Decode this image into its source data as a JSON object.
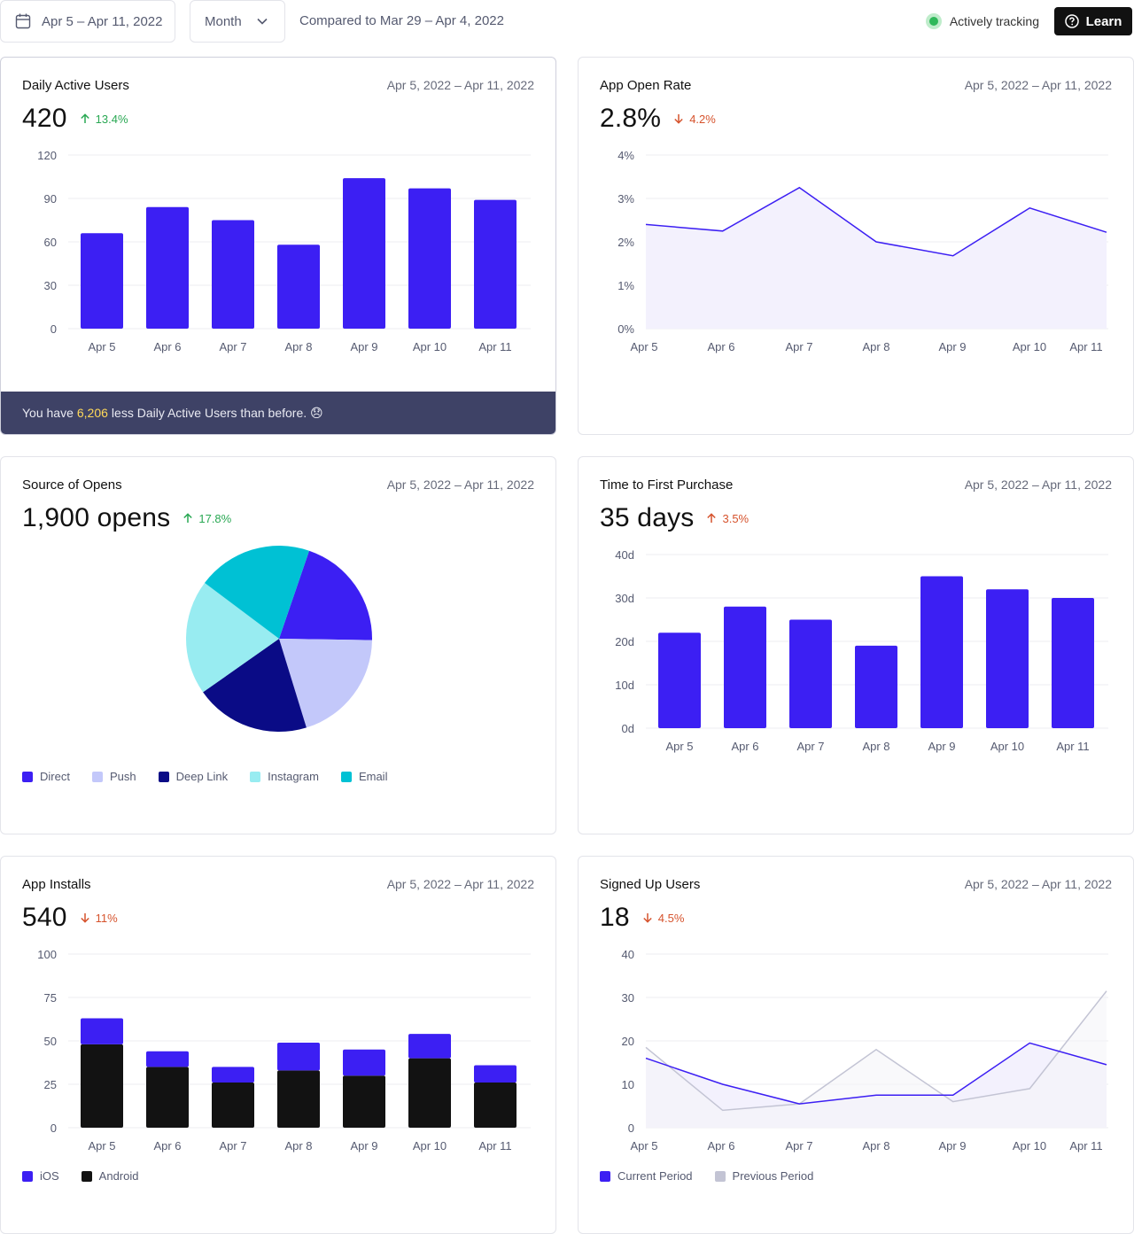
{
  "topbar": {
    "date_range": "Apr 5 – Apr 11, 2022",
    "period": "Month",
    "compared": "Compared to Mar 29 – Apr 4, 2022",
    "tracking": "Actively tracking",
    "learn": "Learn"
  },
  "cards": {
    "dau": {
      "title": "Daily Active Users",
      "date": "Apr 5, 2022 – Apr 11, 2022",
      "value": "420",
      "delta": "13.4%",
      "footer_prefix": "You have",
      "footer_highlight": "6,206",
      "footer_suffix": "less Daily Active Users than before. 😞"
    },
    "open_rate": {
      "title": "App Open Rate",
      "date": "Apr 5, 2022 – Apr 11, 2022",
      "value": "2.8%",
      "delta": "4.2%"
    },
    "sources": {
      "title": "Source of Opens",
      "date": "Apr 5, 2022 – Apr 11, 2022",
      "value": "1,900 opens",
      "delta": "17.8%"
    },
    "purchase": {
      "title": "Time to First Purchase",
      "date": "Apr 5, 2022 – Apr 11, 2022",
      "value": "35 days",
      "delta": "3.5%"
    },
    "installs": {
      "title": "App Installs",
      "date": "Apr 5, 2022 – Apr 11, 2022",
      "value": "540",
      "delta": "11%"
    },
    "signups": {
      "title": "Signed Up Users",
      "date": "Apr 5, 2022 – Apr 11, 2022",
      "value": "18",
      "delta": "4.5%"
    }
  },
  "colors": {
    "primary": "#3c1ff3",
    "dark": "#121212",
    "up": "#29a853",
    "down": "#d6532d",
    "grid": "#ececf2",
    "area": "#f3f1fd",
    "prev_line": "#c3c4d4"
  },
  "chart_data": [
    {
      "id": "dau",
      "type": "bar",
      "title": "Daily Active Users",
      "categories": [
        "Apr 5",
        "Apr 6",
        "Apr 7",
        "Apr 8",
        "Apr 9",
        "Apr 10",
        "Apr 11"
      ],
      "values": [
        66,
        84,
        75,
        58,
        104,
        97,
        89
      ],
      "yticks": [
        "0",
        "30",
        "60",
        "90",
        "120"
      ],
      "ylim": [
        0,
        120
      ]
    },
    {
      "id": "open_rate",
      "type": "area",
      "title": "App Open Rate",
      "categories": [
        "Apr 5",
        "Apr 6",
        "Apr 7",
        "Apr 8",
        "Apr 9",
        "Apr 10",
        "Apr 11"
      ],
      "values": [
        2.4,
        2.25,
        3.25,
        2.0,
        1.68,
        2.78,
        2.22
      ],
      "yticks": [
        "0%",
        "1%",
        "2%",
        "3%",
        "4%"
      ],
      "ylim": [
        0,
        4
      ]
    },
    {
      "id": "sources",
      "type": "pie",
      "title": "Source of Opens",
      "labels": [
        "Direct",
        "Push",
        "Deep Link",
        "Instagram",
        "Email"
      ],
      "values": [
        20,
        20,
        20,
        20,
        20
      ],
      "colors": [
        "#3c1ff3",
        "#c3c8fa",
        "#0a0b86",
        "#98ecf1",
        "#00c1d4"
      ]
    },
    {
      "id": "purchase",
      "type": "bar",
      "title": "Time to First Purchase",
      "categories": [
        "Apr 5",
        "Apr 6",
        "Apr 7",
        "Apr 8",
        "Apr 9",
        "Apr 10",
        "Apr 11"
      ],
      "values": [
        22,
        28,
        25,
        19,
        35,
        32,
        30
      ],
      "yticks": [
        "0d",
        "10d",
        "20d",
        "30d",
        "40d"
      ],
      "ylim": [
        0,
        40
      ]
    },
    {
      "id": "installs",
      "type": "bar",
      "stacked": true,
      "title": "App Installs",
      "categories": [
        "Apr 5",
        "Apr 6",
        "Apr 7",
        "Apr 8",
        "Apr 9",
        "Apr 10",
        "Apr 11"
      ],
      "series": [
        {
          "name": "Android",
          "values": [
            48,
            35,
            26,
            33,
            30,
            40,
            26
          ],
          "color": "#121212"
        },
        {
          "name": "iOS",
          "values": [
            15,
            9,
            9,
            16,
            15,
            14,
            10
          ],
          "color": "#3c1ff3"
        }
      ],
      "yticks": [
        "0",
        "25",
        "50",
        "75",
        "100"
      ],
      "ylim": [
        0,
        100
      ],
      "legend": [
        "iOS",
        "Android"
      ]
    },
    {
      "id": "signups",
      "type": "line",
      "title": "Signed Up Users",
      "categories": [
        "Apr 5",
        "Apr 6",
        "Apr 7",
        "Apr 8",
        "Apr 9",
        "Apr 10",
        "Apr 11"
      ],
      "series": [
        {
          "name": "Current Period",
          "values": [
            16,
            10,
            5.5,
            7.5,
            7.5,
            19.5,
            14.5
          ],
          "color": "#3c1ff3"
        },
        {
          "name": "Previous Period",
          "values": [
            18.5,
            4,
            5.5,
            18,
            6,
            9,
            31.5
          ],
          "color": "#c3c4d4"
        }
      ],
      "yticks": [
        "0",
        "10",
        "20",
        "30",
        "40"
      ],
      "ylim": [
        0,
        40
      ]
    }
  ]
}
